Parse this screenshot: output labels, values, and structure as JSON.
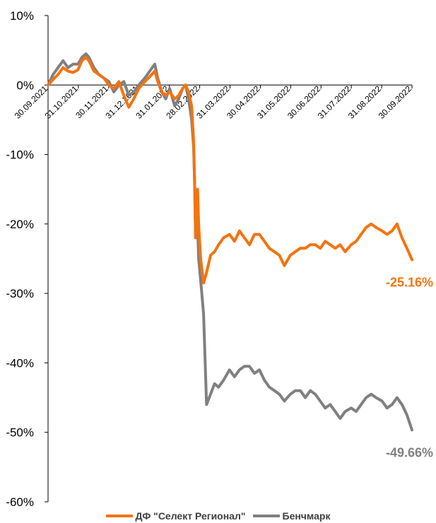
{
  "chart_data": {
    "type": "line",
    "ylim": [
      -60,
      10
    ],
    "y_ticks": [
      "10%",
      "0%",
      "-10%",
      "-20%",
      "-30%",
      "-40%",
      "-50%",
      "-60%"
    ],
    "x_tick_labels": [
      "30.09.2021",
      "31.10.2021",
      "30.11.2021",
      "31.12.2021",
      "31.01.2022",
      "28.02.2022",
      "31.03.2022",
      "30.04.2022",
      "31.05.2022",
      "30.06.2022",
      "31.07.2022",
      "31.08.2022",
      "30.09.2022"
    ],
    "x_start": "2021-09-30",
    "x_end": "2022-09-30",
    "grid": false,
    "legend_position": "bottom",
    "series": [
      {
        "name": "ДФ \"Селект Регионал\"",
        "color": "#F5730F",
        "end_label": "-25.16%",
        "points": [
          [
            "2021-09-30",
            0.0
          ],
          [
            "2021-10-05",
            0.8
          ],
          [
            "2021-10-10",
            1.5
          ],
          [
            "2021-10-15",
            2.5
          ],
          [
            "2021-10-20",
            2.0
          ],
          [
            "2021-10-25",
            1.8
          ],
          [
            "2021-10-30",
            2.2
          ],
          [
            "2021-11-03",
            3.5
          ],
          [
            "2021-11-07",
            4.0
          ],
          [
            "2021-11-10",
            3.5
          ],
          [
            "2021-11-15",
            2.0
          ],
          [
            "2021-11-20",
            1.5
          ],
          [
            "2021-11-25",
            1.0
          ],
          [
            "2021-11-30",
            0.0
          ],
          [
            "2021-12-05",
            -0.5
          ],
          [
            "2021-12-10",
            0.5
          ],
          [
            "2021-12-15",
            -1.5
          ],
          [
            "2021-12-20",
            -3.2
          ],
          [
            "2021-12-25",
            -2.0
          ],
          [
            "2021-12-30",
            -0.5
          ],
          [
            "2022-01-05",
            0.5
          ],
          [
            "2022-01-10",
            1.2
          ],
          [
            "2022-01-15",
            2.0
          ],
          [
            "2022-01-18",
            0.5
          ],
          [
            "2022-01-22",
            -1.0
          ],
          [
            "2022-01-26",
            -1.5
          ],
          [
            "2022-01-30",
            -1.0
          ],
          [
            "2022-02-04",
            -2.0
          ],
          [
            "2022-02-08",
            -1.5
          ],
          [
            "2022-02-12",
            -0.5
          ],
          [
            "2022-02-15",
            0.0
          ],
          [
            "2022-02-18",
            -1.0
          ],
          [
            "2022-02-21",
            -3.0
          ],
          [
            "2022-02-23",
            -8.0
          ],
          [
            "2022-02-24",
            -14.0
          ],
          [
            "2022-02-25",
            -22.0
          ],
          [
            "2022-02-27",
            -15.0
          ],
          [
            "2022-02-28",
            -20.0
          ],
          [
            "2022-03-02",
            -25.0
          ],
          [
            "2022-03-05",
            -28.5
          ],
          [
            "2022-03-08",
            -27.0
          ],
          [
            "2022-03-12",
            -24.5
          ],
          [
            "2022-03-16",
            -24.0
          ],
          [
            "2022-03-20",
            -23.0
          ],
          [
            "2022-03-25",
            -22.0
          ],
          [
            "2022-03-31",
            -21.5
          ],
          [
            "2022-04-05",
            -22.5
          ],
          [
            "2022-04-10",
            -21.0
          ],
          [
            "2022-04-15",
            -22.0
          ],
          [
            "2022-04-20",
            -23.0
          ],
          [
            "2022-04-25",
            -21.5
          ],
          [
            "2022-04-30",
            -21.5
          ],
          [
            "2022-05-05",
            -22.5
          ],
          [
            "2022-05-10",
            -23.5
          ],
          [
            "2022-05-15",
            -24.0
          ],
          [
            "2022-05-20",
            -24.5
          ],
          [
            "2022-05-25",
            -26.0
          ],
          [
            "2022-05-31",
            -24.5
          ],
          [
            "2022-06-05",
            -24.0
          ],
          [
            "2022-06-10",
            -23.5
          ],
          [
            "2022-06-15",
            -23.5
          ],
          [
            "2022-06-20",
            -23.0
          ],
          [
            "2022-06-25",
            -23.0
          ],
          [
            "2022-06-30",
            -23.5
          ],
          [
            "2022-07-05",
            -22.5
          ],
          [
            "2022-07-10",
            -23.0
          ],
          [
            "2022-07-15",
            -23.5
          ],
          [
            "2022-07-20",
            -23.0
          ],
          [
            "2022-07-25",
            -24.0
          ],
          [
            "2022-07-31",
            -23.0
          ],
          [
            "2022-08-05",
            -22.5
          ],
          [
            "2022-08-10",
            -21.5
          ],
          [
            "2022-08-15",
            -20.5
          ],
          [
            "2022-08-20",
            -20.0
          ],
          [
            "2022-08-25",
            -20.5
          ],
          [
            "2022-08-31",
            -21.0
          ],
          [
            "2022-09-05",
            -21.5
          ],
          [
            "2022-09-10",
            -21.0
          ],
          [
            "2022-09-15",
            -20.0
          ],
          [
            "2022-09-20",
            -22.0
          ],
          [
            "2022-09-25",
            -23.5
          ],
          [
            "2022-09-30",
            -25.16
          ]
        ]
      },
      {
        "name": "Бенчмарк",
        "color": "#808080",
        "end_label": "-49.66%",
        "points": [
          [
            "2021-09-30",
            0.0
          ],
          [
            "2021-10-05",
            1.5
          ],
          [
            "2021-10-10",
            2.5
          ],
          [
            "2021-10-15",
            3.5
          ],
          [
            "2021-10-20",
            2.5
          ],
          [
            "2021-10-25",
            3.0
          ],
          [
            "2021-10-30",
            3.0
          ],
          [
            "2021-11-03",
            4.0
          ],
          [
            "2021-11-07",
            4.5
          ],
          [
            "2021-11-10",
            4.0
          ],
          [
            "2021-11-15",
            2.5
          ],
          [
            "2021-11-20",
            1.5
          ],
          [
            "2021-11-25",
            1.0
          ],
          [
            "2021-11-30",
            0.5
          ],
          [
            "2021-12-05",
            -1.0
          ],
          [
            "2021-12-10",
            0.0
          ],
          [
            "2021-12-15",
            0.5
          ],
          [
            "2021-12-20",
            -1.5
          ],
          [
            "2021-12-25",
            -1.0
          ],
          [
            "2021-12-30",
            0.0
          ],
          [
            "2022-01-05",
            1.0
          ],
          [
            "2022-01-10",
            2.0
          ],
          [
            "2022-01-15",
            3.0
          ],
          [
            "2022-01-18",
            1.0
          ],
          [
            "2022-01-22",
            -1.0
          ],
          [
            "2022-01-26",
            -2.0
          ],
          [
            "2022-01-30",
            -0.5
          ],
          [
            "2022-02-04",
            -3.0
          ],
          [
            "2022-02-08",
            -2.0
          ],
          [
            "2022-02-12",
            -0.5
          ],
          [
            "2022-02-15",
            0.0
          ],
          [
            "2022-02-18",
            -2.0
          ],
          [
            "2022-02-21",
            -5.0
          ],
          [
            "2022-02-23",
            -9.0
          ],
          [
            "2022-02-24",
            -14.0
          ],
          [
            "2022-02-25",
            -22.0
          ],
          [
            "2022-02-27",
            -20.0
          ],
          [
            "2022-02-28",
            -25.0
          ],
          [
            "2022-03-02",
            -28.0
          ],
          [
            "2022-03-05",
            -33.0
          ],
          [
            "2022-03-08",
            -46.0
          ],
          [
            "2022-03-12",
            -44.5
          ],
          [
            "2022-03-16",
            -43.0
          ],
          [
            "2022-03-20",
            -43.5
          ],
          [
            "2022-03-25",
            -42.5
          ],
          [
            "2022-03-31",
            -41.0
          ],
          [
            "2022-04-05",
            -42.0
          ],
          [
            "2022-04-10",
            -41.0
          ],
          [
            "2022-04-15",
            -40.5
          ],
          [
            "2022-04-20",
            -40.5
          ],
          [
            "2022-04-25",
            -41.5
          ],
          [
            "2022-04-30",
            -41.0
          ],
          [
            "2022-05-05",
            -42.5
          ],
          [
            "2022-05-10",
            -43.5
          ],
          [
            "2022-05-15",
            -44.0
          ],
          [
            "2022-05-20",
            -44.5
          ],
          [
            "2022-05-25",
            -45.5
          ],
          [
            "2022-05-31",
            -44.5
          ],
          [
            "2022-06-05",
            -44.0
          ],
          [
            "2022-06-10",
            -44.0
          ],
          [
            "2022-06-15",
            -45.0
          ],
          [
            "2022-06-20",
            -44.0
          ],
          [
            "2022-06-25",
            -44.5
          ],
          [
            "2022-06-30",
            -45.5
          ],
          [
            "2022-07-05",
            -46.5
          ],
          [
            "2022-07-10",
            -46.0
          ],
          [
            "2022-07-15",
            -47.0
          ],
          [
            "2022-07-20",
            -48.0
          ],
          [
            "2022-07-25",
            -47.0
          ],
          [
            "2022-07-31",
            -46.5
          ],
          [
            "2022-08-05",
            -47.0
          ],
          [
            "2022-08-10",
            -46.0
          ],
          [
            "2022-08-15",
            -45.0
          ],
          [
            "2022-08-20",
            -44.5
          ],
          [
            "2022-08-25",
            -45.0
          ],
          [
            "2022-08-31",
            -45.5
          ],
          [
            "2022-09-05",
            -46.5
          ],
          [
            "2022-09-10",
            -46.0
          ],
          [
            "2022-09-15",
            -45.0
          ],
          [
            "2022-09-20",
            -46.0
          ],
          [
            "2022-09-25",
            -47.5
          ],
          [
            "2022-09-30",
            -49.66
          ]
        ]
      }
    ]
  }
}
